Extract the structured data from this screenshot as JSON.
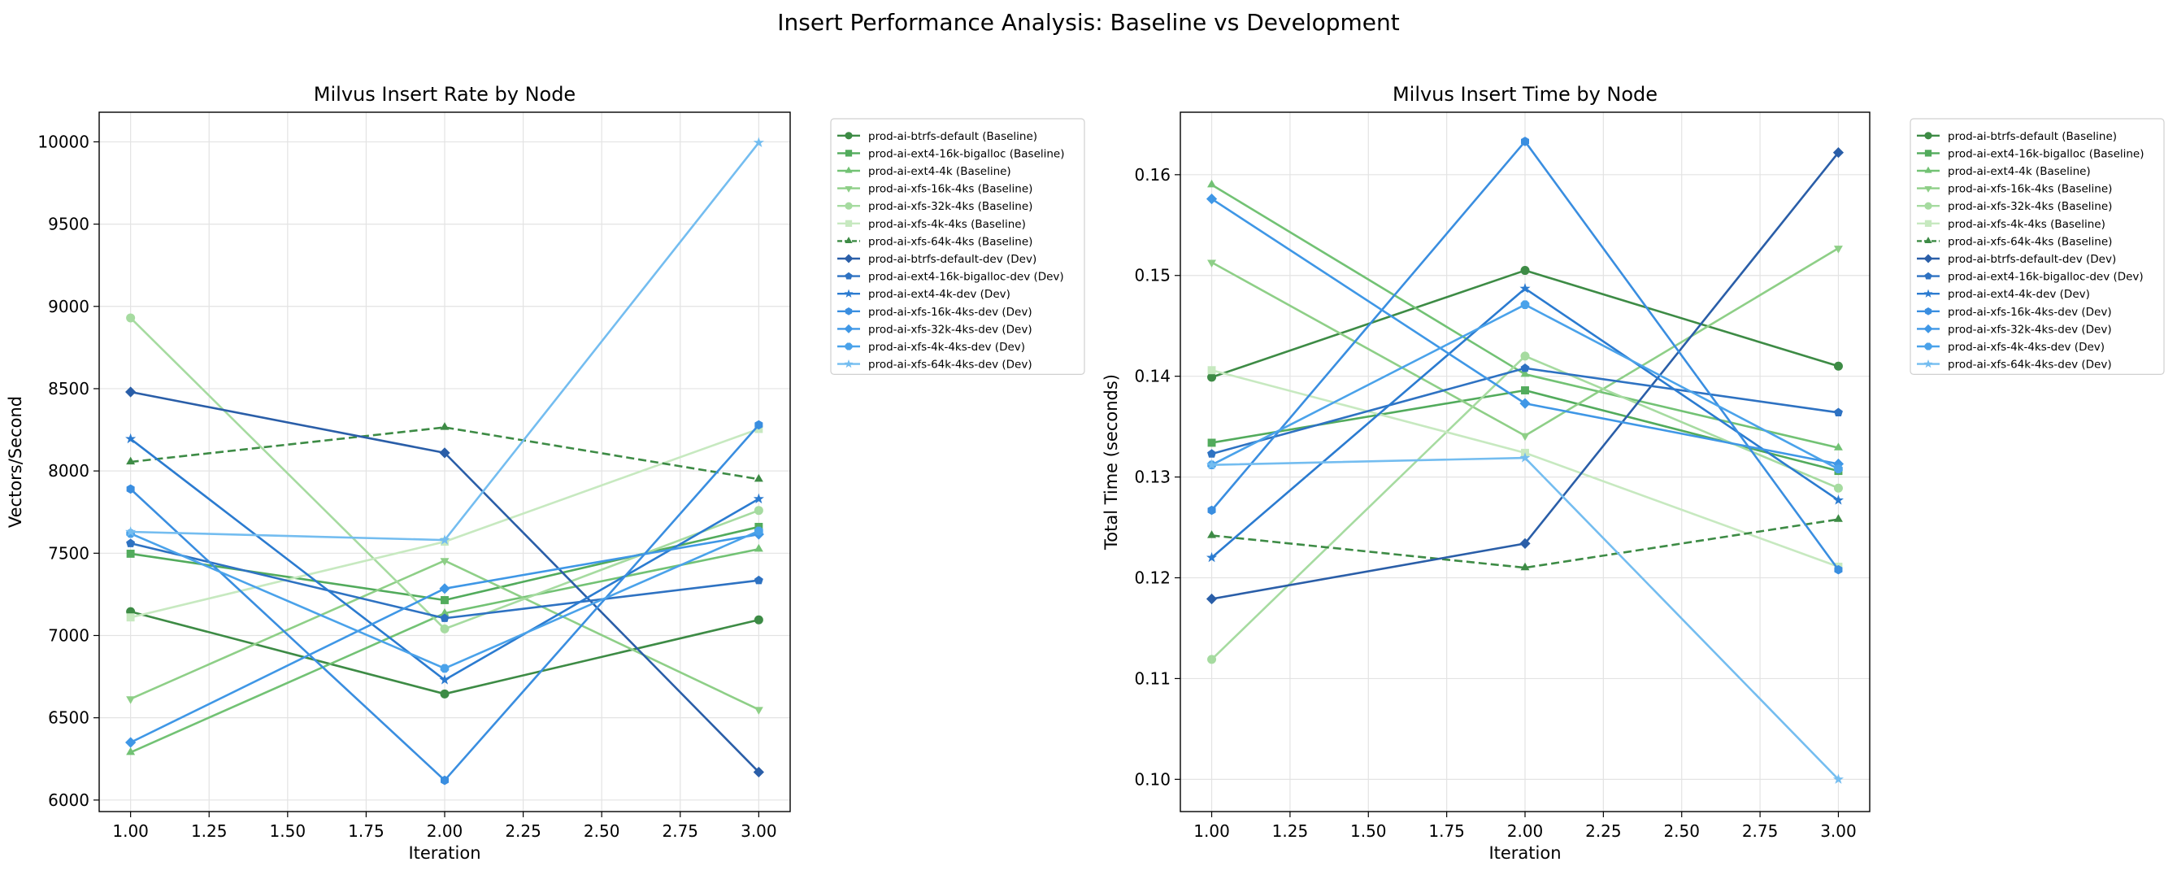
{
  "figure_title": "Insert Performance Analysis: Baseline vs Development",
  "chart_data": [
    {
      "type": "line",
      "title": "Milvus Insert Rate by Node",
      "xlabel": "Iteration",
      "ylabel": "Vectors/Second",
      "x": [
        1,
        2,
        3
      ],
      "xlim": [
        0.9,
        3.1
      ],
      "ylim": [
        5930,
        10180
      ],
      "xticks": [
        "1.00",
        "1.25",
        "1.50",
        "1.75",
        "2.00",
        "2.25",
        "2.50",
        "2.75",
        "3.00"
      ],
      "yticks": [
        "6000",
        "6500",
        "7000",
        "7500",
        "8000",
        "8500",
        "9000",
        "9500",
        "10000"
      ],
      "grid": true,
      "legend_placement": "outside upper right",
      "series": [
        {
          "name": "prod-ai-btrfs-default (Baseline)",
          "values": [
            7145,
            6645,
            7095
          ],
          "color": "#3d8b45",
          "marker": "circle",
          "dash": false
        },
        {
          "name": "prod-ai-ext4-16k-bigalloc (Baseline)",
          "values": [
            7497,
            7215,
            7660
          ],
          "color": "#52ab5c",
          "marker": "square",
          "dash": false
        },
        {
          "name": "prod-ai-ext4-4k (Baseline)",
          "values": [
            6290,
            7135,
            7525
          ],
          "color": "#72c274",
          "marker": "triangle-up",
          "dash": false
        },
        {
          "name": "prod-ai-xfs-16k-4ks (Baseline)",
          "values": [
            6615,
            7455,
            6550
          ],
          "color": "#8ecf87",
          "marker": "triangle-down",
          "dash": false
        },
        {
          "name": "prod-ai-xfs-32k-4ks (Baseline)",
          "values": [
            8930,
            7040,
            7760
          ],
          "color": "#a6dba0",
          "marker": "circle",
          "dash": false
        },
        {
          "name": "prod-ai-xfs-4k-4ks (Baseline)",
          "values": [
            7110,
            7570,
            8255
          ],
          "color": "#c7e9c0",
          "marker": "square",
          "dash": false
        },
        {
          "name": "prod-ai-xfs-64k-4ks (Baseline)",
          "values": [
            8055,
            8265,
            7950
          ],
          "color": "#3d8b45",
          "marker": "triangle-up",
          "dash": true
        },
        {
          "name": "prod-ai-btrfs-default-dev (Dev)",
          "values": [
            8480,
            8110,
            6170
          ],
          "color": "#2a5ea8",
          "marker": "diamond",
          "dash": false
        },
        {
          "name": "prod-ai-ext4-16k-bigalloc-dev (Dev)",
          "values": [
            7560,
            7105,
            7335
          ],
          "color": "#2e72c2",
          "marker": "pentagon",
          "dash": false
        },
        {
          "name": "prod-ai-ext4-4k-dev (Dev)",
          "values": [
            8195,
            6730,
            7830
          ],
          "color": "#2b7bd0",
          "marker": "star",
          "dash": false
        },
        {
          "name": "prod-ai-xfs-16k-4ks-dev (Dev)",
          "values": [
            7890,
            6120,
            8280
          ],
          "color": "#3a8ee0",
          "marker": "hexagon",
          "dash": false
        },
        {
          "name": "prod-ai-xfs-32k-4ks-dev (Dev)",
          "values": [
            6350,
            7285,
            7615
          ],
          "color": "#3f97e6",
          "marker": "diamond",
          "dash": false
        },
        {
          "name": "prod-ai-xfs-4k-4ks-dev (Dev)",
          "values": [
            7620,
            6800,
            7635
          ],
          "color": "#4aa2ea",
          "marker": "octagon",
          "dash": false
        },
        {
          "name": "prod-ai-xfs-64k-4ks-dev (Dev)",
          "values": [
            7630,
            7580,
            9995
          ],
          "color": "#74bdf0",
          "marker": "star",
          "dash": false
        }
      ]
    },
    {
      "type": "line",
      "title": "Milvus Insert Time by Node",
      "xlabel": "Iteration",
      "ylabel": "Total Time (seconds)",
      "x": [
        1,
        2,
        3
      ],
      "xlim": [
        0.9,
        3.1
      ],
      "ylim": [
        0.0968,
        0.1662
      ],
      "xticks": [
        "1.00",
        "1.25",
        "1.50",
        "1.75",
        "2.00",
        "2.25",
        "2.50",
        "2.75",
        "3.00"
      ],
      "yticks": [
        "0.10",
        "0.11",
        "0.12",
        "0.13",
        "0.14",
        "0.15",
        "0.16"
      ],
      "grid": true,
      "legend_placement": "outside upper right",
      "series": [
        {
          "name": "prod-ai-btrfs-default (Baseline)",
          "values": [
            0.1399,
            0.1505,
            0.141
          ],
          "color": "#3d8b45",
          "marker": "circle",
          "dash": false
        },
        {
          "name": "prod-ai-ext4-16k-bigalloc (Baseline)",
          "values": [
            0.1334,
            0.1386,
            0.1306
          ],
          "color": "#52ab5c",
          "marker": "square",
          "dash": false
        },
        {
          "name": "prod-ai-ext4-4k (Baseline)",
          "values": [
            0.159,
            0.1402,
            0.1329
          ],
          "color": "#72c274",
          "marker": "triangle-up",
          "dash": false
        },
        {
          "name": "prod-ai-xfs-16k-4ks (Baseline)",
          "values": [
            0.1513,
            0.1341,
            0.1527
          ],
          "color": "#8ecf87",
          "marker": "triangle-down",
          "dash": false
        },
        {
          "name": "prod-ai-xfs-32k-4ks (Baseline)",
          "values": [
            0.1119,
            0.142,
            0.1289
          ],
          "color": "#a6dba0",
          "marker": "circle",
          "dash": false
        },
        {
          "name": "prod-ai-xfs-4k-4ks (Baseline)",
          "values": [
            0.1406,
            0.1324,
            0.1211
          ],
          "color": "#c7e9c0",
          "marker": "square",
          "dash": false
        },
        {
          "name": "prod-ai-xfs-64k-4ks (Baseline)",
          "values": [
            0.1242,
            0.121,
            0.1258
          ],
          "color": "#3d8b45",
          "marker": "triangle-up",
          "dash": true
        },
        {
          "name": "prod-ai-btrfs-default-dev (Dev)",
          "values": [
            0.1179,
            0.1234,
            0.1622
          ],
          "color": "#2a5ea8",
          "marker": "diamond",
          "dash": false
        },
        {
          "name": "prod-ai-ext4-16k-bigalloc-dev (Dev)",
          "values": [
            0.1323,
            0.1408,
            0.1364
          ],
          "color": "#2e72c2",
          "marker": "pentagon",
          "dash": false
        },
        {
          "name": "prod-ai-ext4-4k-dev (Dev)",
          "values": [
            0.122,
            0.1487,
            0.1277
          ],
          "color": "#2b7bd0",
          "marker": "star",
          "dash": false
        },
        {
          "name": "prod-ai-xfs-16k-4ks-dev (Dev)",
          "values": [
            0.1267,
            0.1633,
            0.1208
          ],
          "color": "#3a8ee0",
          "marker": "hexagon",
          "dash": false
        },
        {
          "name": "prod-ai-xfs-32k-4ks-dev (Dev)",
          "values": [
            0.1576,
            0.1373,
            0.1313
          ],
          "color": "#3f97e6",
          "marker": "diamond",
          "dash": false
        },
        {
          "name": "prod-ai-xfs-4k-4ks-dev (Dev)",
          "values": [
            0.1312,
            0.1471,
            0.1308
          ],
          "color": "#4aa2ea",
          "marker": "octagon",
          "dash": false
        },
        {
          "name": "prod-ai-xfs-64k-4ks-dev (Dev)",
          "values": [
            0.1312,
            0.1319,
            0.1
          ],
          "color": "#74bdf0",
          "marker": "star",
          "dash": false
        }
      ]
    }
  ]
}
